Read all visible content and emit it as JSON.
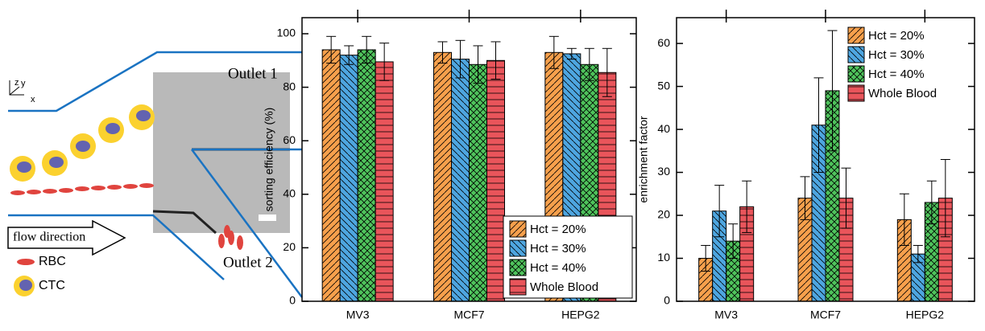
{
  "diagram": {
    "outlet_1": "Outlet 1",
    "outlet_2": "Outlet 2",
    "flow": "flow direction",
    "rbc": "RBC",
    "ctc": "CTC",
    "axis_z": "z",
    "axis_y": "y",
    "axis_x": "x"
  },
  "chart_data": [
    {
      "type": "bar",
      "y_label": "sorting efficiency (%)",
      "categories": [
        "MV3",
        "MCF7",
        "HEPG2"
      ],
      "ylim": [
        0,
        106
      ],
      "yticks": [
        0,
        20,
        40,
        60,
        80,
        100
      ],
      "legend": "lower right",
      "series": [
        {
          "name": "Hct = 20%",
          "color": "#f7a04c",
          "values": [
            94,
            93,
            93
          ],
          "errors": [
            5,
            4,
            6
          ]
        },
        {
          "name": "Hct = 30%",
          "color": "#4ea6e0",
          "values": [
            92,
            90.5,
            92.5
          ],
          "errors": [
            3.5,
            7,
            2
          ]
        },
        {
          "name": "Hct = 40%",
          "color": "#4fc45c",
          "values": [
            94,
            88.5,
            88.5
          ],
          "errors": [
            5,
            7,
            6
          ]
        },
        {
          "name": "Whole Blood",
          "color": "#e9555b",
          "values": [
            89.5,
            90,
            85.5
          ],
          "errors": [
            7,
            7,
            9
          ]
        }
      ]
    },
    {
      "type": "bar",
      "y_label": "enrichment factor",
      "categories": [
        "MV3",
        "MCF7",
        "HEPG2"
      ],
      "ylim": [
        0,
        66
      ],
      "yticks": [
        0,
        10,
        20,
        30,
        40,
        50,
        60
      ],
      "legend": "upper right",
      "series": [
        {
          "name": "Hct = 20%",
          "color": "#f7a04c",
          "values": [
            10,
            24,
            19
          ],
          "errors": [
            3,
            5,
            6
          ]
        },
        {
          "name": "Hct = 30%",
          "color": "#4ea6e0",
          "values": [
            21,
            41,
            11
          ],
          "errors": [
            6,
            11,
            2
          ]
        },
        {
          "name": "Hct = 40%",
          "color": "#4fc45c",
          "values": [
            14,
            49,
            23
          ],
          "errors": [
            4,
            14,
            5
          ]
        },
        {
          "name": "Whole Blood",
          "color": "#e9555b",
          "values": [
            22,
            24,
            24
          ],
          "errors": [
            6,
            7,
            9
          ]
        }
      ]
    }
  ]
}
